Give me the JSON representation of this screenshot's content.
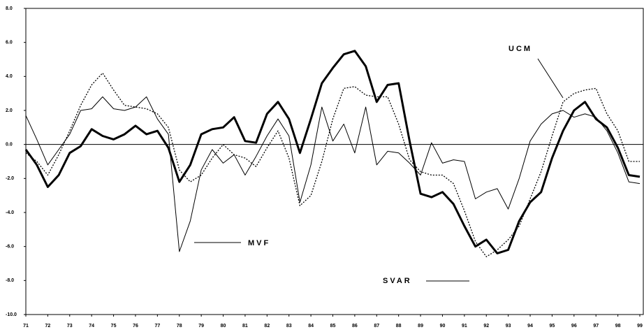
{
  "chart_data": {
    "type": "line",
    "x": [
      71,
      71.5,
      72,
      72.5,
      73,
      73.5,
      74,
      74.5,
      75,
      75.5,
      76,
      76.5,
      77,
      77.5,
      78,
      78.5,
      79,
      79.5,
      80,
      80.5,
      81,
      81.5,
      82,
      82.5,
      83,
      83.5,
      84,
      84.5,
      85,
      85.5,
      86,
      86.5,
      87,
      87.5,
      88,
      88.5,
      89,
      89.5,
      90,
      90.5,
      91,
      91.5,
      92,
      92.5,
      93,
      93.5,
      94,
      94.5,
      95,
      95.5,
      96,
      96.5,
      97,
      97.5,
      98,
      98.5,
      99
    ],
    "series": [
      {
        "name": "SVAR",
        "color": "#000000",
        "style": "thick",
        "values": [
          -0.3,
          -1.2,
          -2.5,
          -1.8,
          -0.5,
          -0.1,
          0.9,
          0.5,
          0.3,
          0.6,
          1.1,
          0.6,
          0.8,
          -0.2,
          -2.2,
          -1.2,
          0.6,
          0.9,
          1.0,
          1.6,
          0.2,
          0.1,
          1.8,
          2.5,
          1.5,
          -0.5,
          1.5,
          3.6,
          4.5,
          5.3,
          5.5,
          4.6,
          2.5,
          3.5,
          3.6,
          0.2,
          -2.9,
          -3.1,
          -2.8,
          -3.5,
          -4.8,
          -6.0,
          -5.6,
          -6.4,
          -6.2,
          -4.5,
          -3.4,
          -2.8,
          -0.8,
          0.8,
          2.0,
          2.5,
          1.5,
          1.0,
          -0.2,
          -1.8,
          -1.9
        ]
      },
      {
        "name": "MVF",
        "color": "#000000",
        "style": "thin",
        "values": [
          1.7,
          0.3,
          -1.2,
          -0.3,
          0.6,
          2.0,
          2.1,
          2.8,
          2.1,
          2.0,
          2.2,
          2.8,
          1.5,
          0.6,
          -6.3,
          -4.5,
          -1.5,
          -0.3,
          -1.1,
          -0.6,
          -1.8,
          -0.7,
          0.5,
          1.5,
          0.5,
          -3.4,
          -1.2,
          2.2,
          0.2,
          1.2,
          -0.5,
          2.2,
          -1.2,
          -0.4,
          -0.5,
          -1.1,
          -1.8,
          0.1,
          -1.1,
          -0.9,
          -1.0,
          -3.2,
          -2.8,
          -2.6,
          -3.8,
          -2.0,
          0.2,
          1.2,
          1.8,
          2.0,
          1.6,
          1.8,
          1.6,
          0.8,
          -0.5,
          -2.2,
          -2.3
        ]
      },
      {
        "name": "UCM",
        "color": "#000000",
        "style": "dotted",
        "values": [
          -0.5,
          -1.0,
          -1.8,
          -0.6,
          0.8,
          2.3,
          3.5,
          4.2,
          3.2,
          2.3,
          2.2,
          2.1,
          1.8,
          1.0,
          -1.5,
          -2.2,
          -1.8,
          -0.8,
          0.0,
          -0.6,
          -0.8,
          -1.3,
          -0.2,
          0.8,
          -0.8,
          -3.6,
          -3.0,
          -1.0,
          1.5,
          3.3,
          3.4,
          2.9,
          2.8,
          2.8,
          1.2,
          -0.9,
          -1.6,
          -1.8,
          -1.8,
          -2.3,
          -3.9,
          -5.7,
          -6.6,
          -6.2,
          -5.6,
          -4.8,
          -3.2,
          -1.6,
          0.5,
          2.5,
          3.0,
          3.2,
          3.3,
          1.8,
          0.8,
          -1.0,
          -1.0
        ]
      }
    ],
    "xlim": [
      71,
      99
    ],
    "xticks": [
      71,
      72,
      73,
      74,
      75,
      76,
      77,
      78,
      79,
      80,
      81,
      82,
      83,
      84,
      85,
      86,
      87,
      88,
      89,
      90,
      91,
      92,
      93,
      94,
      95,
      96,
      97,
      98,
      99
    ],
    "ylim": [
      -10,
      8
    ],
    "yticks": [
      {
        "value": 8,
        "label": "8.0"
      },
      {
        "value": 6,
        "label": "6.0"
      },
      {
        "value": 4,
        "label": "4.0"
      },
      {
        "value": 2,
        "label": "2.0"
      },
      {
        "value": 0,
        "label": "0.0"
      },
      {
        "value": -2,
        "label": "-2.0"
      },
      {
        "value": -4,
        "label": "-4.0"
      },
      {
        "value": -6,
        "label": "-6.0"
      },
      {
        "value": -8,
        "label": "-8.0"
      },
      {
        "value": -10,
        "label": "-10.0"
      }
    ]
  }
}
